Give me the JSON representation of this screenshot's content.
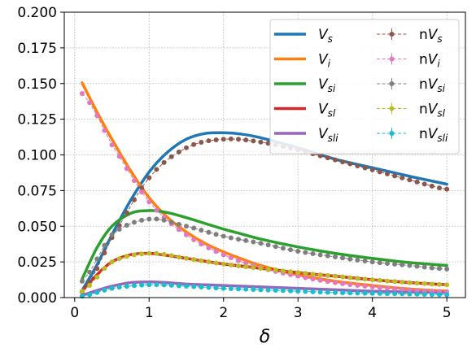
{
  "chart_data": {
    "type": "line",
    "xlabel": "δ",
    "ylabel": "",
    "xlim": [
      -0.14,
      5.25
    ],
    "ylim": [
      0.0,
      0.2
    ],
    "xticks": [
      0,
      1,
      2,
      3,
      4,
      5
    ],
    "xtick_labels": [
      "0",
      "1",
      "2",
      "3",
      "4",
      "5"
    ],
    "yticks": [
      0.0,
      0.025,
      0.05,
      0.075,
      0.1,
      0.125,
      0.15,
      0.175,
      0.2
    ],
    "ytick_labels": [
      "0.000",
      "0.025",
      "0.050",
      "0.075",
      "0.100",
      "0.125",
      "0.150",
      "0.175",
      "0.200"
    ],
    "grid": true,
    "legend_position": "top-right",
    "legend_columns": 2,
    "x_curve": [
      0.1,
      0.3,
      0.5,
      0.75,
      1.0,
      1.25,
      1.5,
      1.75,
      2.0,
      2.25,
      2.5,
      3.0,
      3.5,
      4.0,
      4.5,
      5.0
    ],
    "curves": [
      {
        "name": "V_s",
        "color": "#1f77b4",
        "values": [
          0.005,
          0.023,
          0.044,
          0.068,
          0.088,
          0.102,
          0.111,
          0.115,
          0.1155,
          0.1145,
          0.112,
          0.105,
          0.097,
          0.091,
          0.085,
          0.0795
        ]
      },
      {
        "name": "V_i",
        "color": "#ff7f0e",
        "values": [
          0.1505,
          0.13,
          0.111,
          0.089,
          0.07,
          0.056,
          0.046,
          0.038,
          0.032,
          0.027,
          0.0225,
          0.016,
          0.0115,
          0.0085,
          0.006,
          0.0045
        ]
      },
      {
        "name": "V_si",
        "color": "#2ca02c",
        "values": [
          0.013,
          0.035,
          0.05,
          0.059,
          0.061,
          0.0595,
          0.056,
          0.052,
          0.048,
          0.0445,
          0.041,
          0.0355,
          0.031,
          0.0275,
          0.0245,
          0.0225
        ]
      },
      {
        "name": "V_sl",
        "color": "#d62728",
        "values": [
          0.0045,
          0.016,
          0.025,
          0.03,
          0.031,
          0.0295,
          0.0275,
          0.0255,
          0.0235,
          0.022,
          0.0205,
          0.0175,
          0.015,
          0.0125,
          0.0105,
          0.009
        ]
      },
      {
        "name": "V_sli",
        "color": "#9467bd",
        "values": [
          0.0015,
          0.005,
          0.008,
          0.0105,
          0.011,
          0.0105,
          0.0095,
          0.009,
          0.0085,
          0.008,
          0.0075,
          0.0065,
          0.0055,
          0.0045,
          0.004,
          0.0035
        ]
      }
    ],
    "x_points": [
      0.1,
      0.2,
      0.3,
      0.4,
      0.5,
      0.6,
      0.7,
      0.8,
      0.9,
      1.0,
      1.1,
      1.2,
      1.3,
      1.4,
      1.5,
      1.6,
      1.7,
      1.8,
      1.9,
      2.0,
      2.1,
      2.2,
      2.3,
      2.4,
      2.5,
      2.6,
      2.7,
      2.8,
      2.9,
      3.0,
      3.1,
      3.2,
      3.3,
      3.4,
      3.5,
      3.6,
      3.7,
      3.8,
      3.9,
      4.0,
      4.1,
      4.2,
      4.3,
      4.4,
      4.5,
      4.6,
      4.7,
      4.8,
      4.9,
      5.0
    ],
    "point_series": [
      {
        "name": "nV_s",
        "color": "#8c564b",
        "anchors_x": [
          0.1,
          0.5,
          1.0,
          1.5,
          2.0,
          2.5,
          3.0,
          3.5,
          4.0,
          4.5,
          5.0
        ],
        "anchors_y": [
          0.004,
          0.042,
          0.084,
          0.105,
          0.111,
          0.109,
          0.1035,
          0.0965,
          0.0895,
          0.0825,
          0.076
        ]
      },
      {
        "name": "nV_i",
        "color": "#e377c2",
        "anchors_x": [
          0.1,
          0.5,
          1.0,
          1.5,
          2.0,
          2.5,
          3.0,
          3.5,
          4.0,
          4.5,
          5.0
        ],
        "anchors_y": [
          0.143,
          0.107,
          0.067,
          0.044,
          0.03,
          0.021,
          0.015,
          0.0105,
          0.0075,
          0.0055,
          0.004
        ]
      },
      {
        "name": "nV_si",
        "color": "#7f7f7f",
        "anchors_x": [
          0.1,
          0.5,
          1.0,
          1.5,
          2.0,
          2.5,
          3.0,
          3.5,
          4.0,
          4.5,
          5.0
        ],
        "anchors_y": [
          0.0115,
          0.044,
          0.055,
          0.05,
          0.043,
          0.038,
          0.0325,
          0.0285,
          0.025,
          0.0225,
          0.02
        ]
      },
      {
        "name": "nV_sl",
        "color": "#bcbd22",
        "anchors_x": [
          0.1,
          0.5,
          1.0,
          1.5,
          2.0,
          2.5,
          3.0,
          3.5,
          4.0,
          4.5,
          5.0
        ],
        "anchors_y": [
          0.0045,
          0.025,
          0.031,
          0.0275,
          0.0235,
          0.0205,
          0.0175,
          0.015,
          0.0125,
          0.0105,
          0.009
        ]
      },
      {
        "name": "nV_sli",
        "color": "#17becf",
        "anchors_x": [
          0.1,
          0.5,
          1.0,
          1.5,
          2.0,
          2.5,
          3.0,
          3.5,
          4.0,
          4.5,
          5.0
        ],
        "anchors_y": [
          0.001,
          0.0065,
          0.009,
          0.008,
          0.0065,
          0.0055,
          0.0045,
          0.0035,
          0.003,
          0.0025,
          0.002
        ]
      }
    ],
    "legend": {
      "solid": [
        {
          "label": "V",
          "sub": "s",
          "color": "#1f77b4"
        },
        {
          "label": "V",
          "sub": "i",
          "color": "#ff7f0e"
        },
        {
          "label": "V",
          "sub": "si",
          "color": "#2ca02c"
        },
        {
          "label": "V",
          "sub": "sl",
          "color": "#d62728"
        },
        {
          "label": "V",
          "sub": "sli",
          "color": "#9467bd"
        }
      ],
      "points": [
        {
          "prefix": "n",
          "label": "V",
          "sub": "s",
          "color": "#8c564b"
        },
        {
          "prefix": "n",
          "label": "V",
          "sub": "i",
          "color": "#e377c2"
        },
        {
          "prefix": "n",
          "label": "V",
          "sub": "si",
          "color": "#7f7f7f"
        },
        {
          "prefix": "n",
          "label": "V",
          "sub": "sl",
          "color": "#bcbd22"
        },
        {
          "prefix": "n",
          "label": "V",
          "sub": "sli",
          "color": "#17becf"
        }
      ]
    }
  }
}
